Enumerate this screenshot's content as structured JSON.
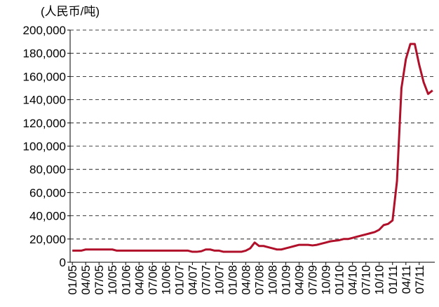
{
  "chart_data": {
    "type": "line",
    "y_label": "(人民币/吨)",
    "categories": [
      "01/05",
      null,
      null,
      "04/05",
      null,
      null,
      "07/05",
      null,
      null,
      "10/05",
      null,
      null,
      "01/06",
      null,
      null,
      "04/06",
      null,
      null,
      "07/06",
      null,
      null,
      "10/06",
      null,
      null,
      "01/07",
      null,
      null,
      "04/07",
      null,
      null,
      "07/07",
      null,
      null,
      "10/07",
      null,
      null,
      "01/08",
      null,
      null,
      "04/08",
      null,
      null,
      "07/08",
      null,
      null,
      "10/08",
      null,
      null,
      "01/09",
      null,
      null,
      "04/09",
      null,
      null,
      "07/09",
      null,
      null,
      "10/09",
      null,
      null,
      "01/10",
      null,
      null,
      "04/10",
      null,
      null,
      "07/10",
      null,
      null,
      "10/10",
      null,
      null,
      "01/11",
      null,
      null,
      "04/11",
      null,
      null,
      "07/11",
      null,
      null,
      null
    ],
    "series": [
      {
        "color": "#b0102a",
        "values": [
          10000,
          10000,
          10000,
          11000,
          11000,
          11000,
          11000,
          11000,
          11000,
          11000,
          10000,
          10000,
          10000,
          10000,
          10000,
          10000,
          10000,
          10000,
          10000,
          10000,
          10000,
          10000,
          10000,
          10000,
          10000,
          10000,
          10000,
          9000,
          9000,
          9500,
          11000,
          11000,
          10000,
          10000,
          9000,
          9000,
          9000,
          9000,
          9000,
          10000,
          12000,
          17000,
          14000,
          14000,
          13000,
          12000,
          11000,
          11000,
          12000,
          13000,
          14000,
          15000,
          15000,
          15000,
          14500,
          15000,
          16000,
          17000,
          18000,
          18500,
          19000,
          20000,
          20000,
          21000,
          22000,
          23000,
          24000,
          25000,
          26000,
          28000,
          32000,
          33000,
          36000,
          70000,
          150000,
          175000,
          188000,
          188000,
          170000,
          155000,
          145000,
          148000
        ]
      }
    ],
    "ylim": [
      0,
      200000
    ],
    "yticks": [
      0,
      {
        "value": 20000,
        "label": "20,000"
      },
      {
        "value": 40000,
        "label": "40,000"
      },
      {
        "value": 60000,
        "label": "60,000"
      },
      {
        "value": 80000,
        "label": "80,000"
      },
      {
        "value": 100000,
        "label": "100,000"
      },
      {
        "value": 120000,
        "label": "120,000"
      },
      {
        "value": 140000,
        "label": "140,000"
      },
      {
        "value": 160000,
        "label": "160,000"
      },
      {
        "value": 180000,
        "label": "180,000"
      },
      {
        "value": 200000,
        "label": "200,000"
      }
    ],
    "grid": true
  }
}
